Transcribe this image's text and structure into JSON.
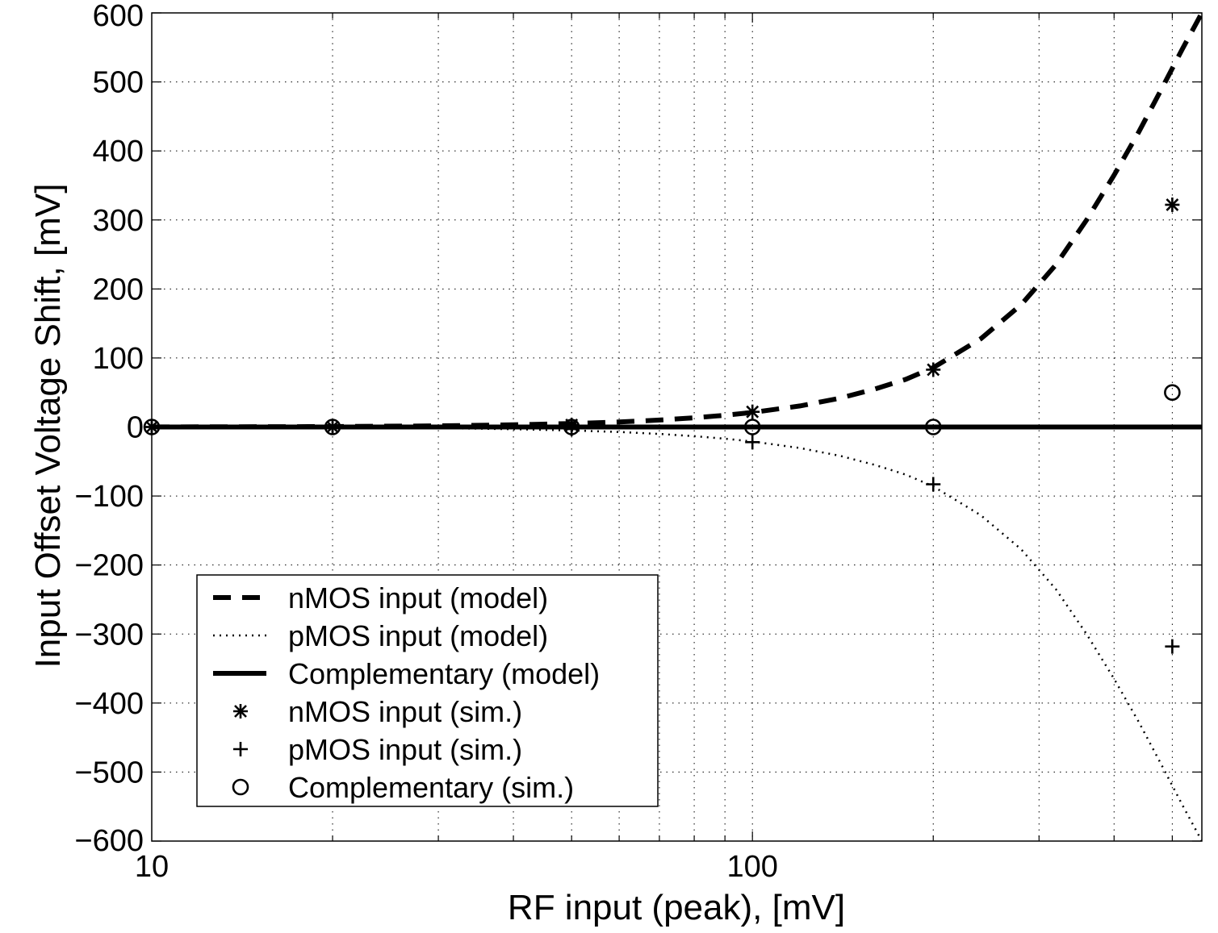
{
  "chart_data": {
    "type": "line",
    "title": "",
    "xlabel": "RF input (peak), [mV]",
    "ylabel": "Input Offset Voltage Shift, [mV]",
    "xscale": "log",
    "xlim": [
      10,
      560
    ],
    "ylim": [
      -600,
      600
    ],
    "xticks": [
      10,
      100
    ],
    "xtick_labels": [
      "10",
      "100"
    ],
    "yticks": [
      -600,
      -500,
      -400,
      -300,
      -200,
      -100,
      0,
      100,
      200,
      300,
      400,
      500,
      600
    ],
    "ytick_labels": [
      "−600",
      "−500",
      "−400",
      "−300",
      "−200",
      "−100",
      "0",
      "100",
      "200",
      "300",
      "400",
      "500",
      "600"
    ],
    "grid": true,
    "legend_position": "lower-left",
    "series": [
      {
        "name": "nMOS input (model)",
        "style": "dashed",
        "x": [
          10,
          20,
          30,
          40,
          50,
          60,
          70,
          80,
          90,
          100,
          120,
          140,
          160,
          180,
          200,
          240,
          280,
          320,
          360,
          400,
          440,
          480,
          520,
          560
        ],
        "y": [
          0.1,
          0.6,
          1.6,
          3.2,
          5.0,
          7.3,
          10.0,
          13.3,
          17.0,
          21.0,
          30.5,
          41.8,
          55.0,
          69.0,
          86.0,
          128.0,
          177.0,
          235.0,
          300.0,
          365.0,
          428.0,
          490.0,
          548.0,
          600.0
        ]
      },
      {
        "name": "pMOS input (model)",
        "style": "dotted",
        "x": [
          10,
          20,
          30,
          40,
          50,
          60,
          70,
          80,
          90,
          100,
          120,
          140,
          160,
          180,
          200,
          240,
          280,
          320,
          360,
          400,
          440,
          480,
          520,
          560
        ],
        "y": [
          -0.1,
          -0.6,
          -1.6,
          -3.2,
          -5.0,
          -7.3,
          -10.0,
          -13.3,
          -17.0,
          -21.0,
          -30.5,
          -41.8,
          -55.0,
          -69.0,
          -86.0,
          -128.0,
          -177.0,
          -235.0,
          -300.0,
          -365.0,
          -428.0,
          -490.0,
          -548.0,
          -600.0
        ]
      },
      {
        "name": "Complementary (model)",
        "style": "solid",
        "x": [
          10,
          560
        ],
        "y": [
          0,
          0
        ]
      },
      {
        "name": "nMOS input (sim.)",
        "marker": "asterisk",
        "x": [
          10,
          20,
          50,
          100,
          200,
          500
        ],
        "y": [
          0,
          0,
          3,
          22,
          83,
          322
        ]
      },
      {
        "name": "pMOS input (sim.)",
        "marker": "plus",
        "x": [
          10,
          20,
          50,
          100,
          200,
          500
        ],
        "y": [
          0,
          0,
          -3,
          -22,
          -83,
          -318
        ]
      },
      {
        "name": "Complementary (sim.)",
        "marker": "circle",
        "x": [
          10,
          20,
          50,
          100,
          200,
          500
        ],
        "y": [
          0,
          0,
          0,
          0,
          0,
          50
        ]
      }
    ]
  }
}
